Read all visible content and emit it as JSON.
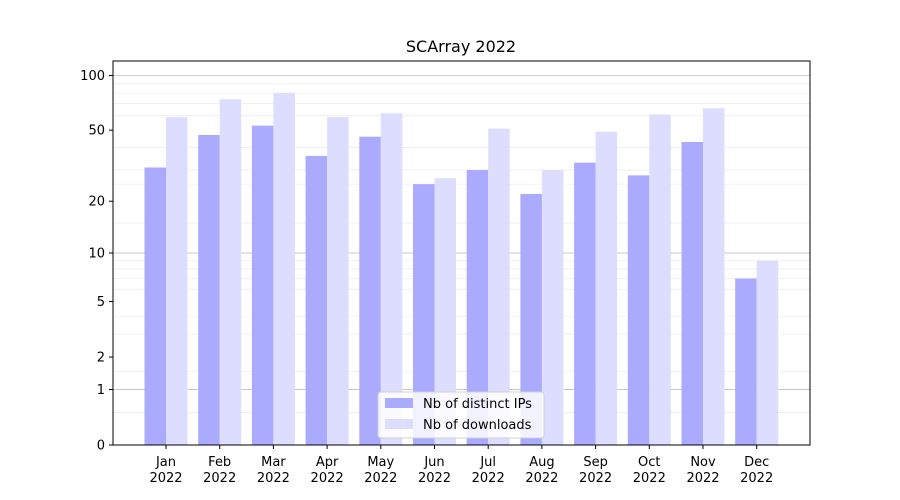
{
  "chart_data": {
    "type": "bar",
    "title": "SCArray 2022",
    "categories": [
      [
        "Jan",
        "2022"
      ],
      [
        "Feb",
        "2022"
      ],
      [
        "Mar",
        "2022"
      ],
      [
        "Apr",
        "2022"
      ],
      [
        "May",
        "2022"
      ],
      [
        "Jun",
        "2022"
      ],
      [
        "Jul",
        "2022"
      ],
      [
        "Aug",
        "2022"
      ],
      [
        "Sep",
        "2022"
      ],
      [
        "Oct",
        "2022"
      ],
      [
        "Nov",
        "2022"
      ],
      [
        "Dec",
        "2022"
      ]
    ],
    "series": [
      {
        "name": "Nb of distinct IPs",
        "color": "#aaaaff",
        "values": [
          31,
          47,
          53,
          36,
          46,
          25,
          30,
          22,
          33,
          28,
          43,
          7
        ]
      },
      {
        "name": "Nb of downloads",
        "color": "#ddddff",
        "values": [
          59,
          74,
          80,
          59,
          62,
          27,
          51,
          30,
          49,
          61,
          66,
          9
        ]
      }
    ],
    "yscale": "log1p",
    "ylim": [
      0,
      120
    ],
    "yticks": [
      0,
      1,
      2,
      5,
      10,
      20,
      50,
      100
    ],
    "grid": true,
    "legend_position": "bottom-center"
  }
}
